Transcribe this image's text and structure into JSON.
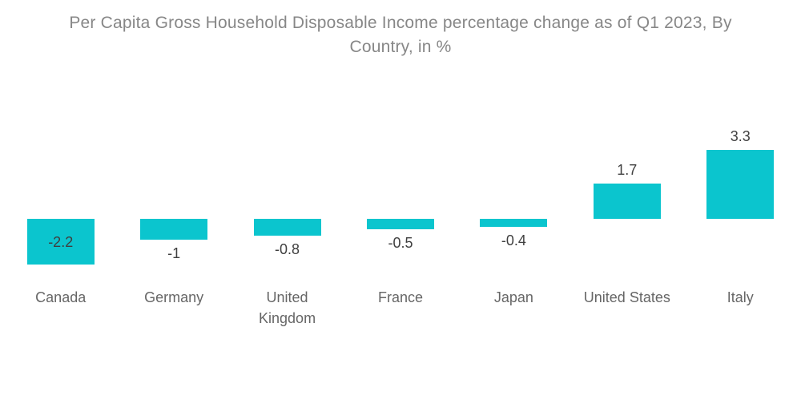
{
  "title": {
    "text": "Per Capita Gross Household Disposable Income percentage change as of Q1 2023, By Country, in %",
    "color": "#878787"
  },
  "chart_data": {
    "type": "bar",
    "title": "Per Capita Gross Household Disposable Income percentage change as of Q1 2023, By Country, in %",
    "categories": [
      "Canada",
      "Germany",
      "United Kingdom",
      "France",
      "Japan",
      "United States",
      "Italy"
    ],
    "values": [
      -2.2,
      -1,
      -0.8,
      -0.5,
      -0.4,
      1.7,
      3.3
    ],
    "value_labels": [
      "-2.2",
      "-1",
      "-0.8",
      "-0.5",
      "-0.4",
      "1.7",
      "3.3"
    ],
    "xlabel": "",
    "ylabel": "",
    "ylim": [
      -2.6,
      3.6
    ],
    "grid": false,
    "legend": false,
    "axis_lines": false,
    "bar_color": "#0bc5ce",
    "value_label_color": "#3f3f3f",
    "category_label_color": "#666666",
    "background_color": "#ffffff"
  }
}
